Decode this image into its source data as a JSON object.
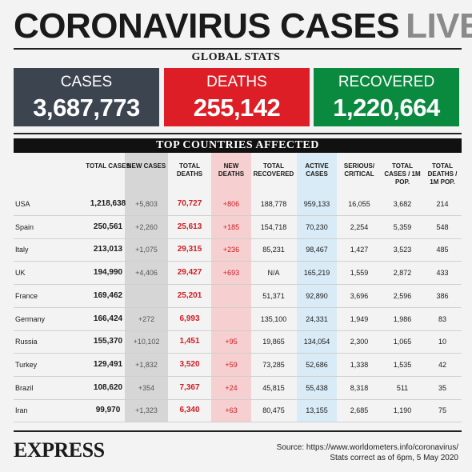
{
  "headline": {
    "main": "CORONAVIRUS CASES",
    "live": "LIVE"
  },
  "global": {
    "label": "GLOBAL STATS",
    "cases": {
      "label": "CASES",
      "value": "3,687,773",
      "color": "#3c4450"
    },
    "deaths": {
      "label": "DEATHS",
      "value": "255,142",
      "color": "#dd1e26"
    },
    "recovered": {
      "label": "RECOVERED",
      "value": "1,220,664",
      "color": "#0a8a3f"
    }
  },
  "table": {
    "title": "TOP COUNTRIES AFFECTED",
    "columns": [
      "TOTAL CASES",
      "NEW CASES",
      "TOTAL DEATHS",
      "NEW DEATHS",
      "TOTAL RECOVERED",
      "ACTIVE CASES",
      "SERIOUS/ CRITICAL",
      "TOTAL CASES / 1M POP.",
      "TOTAL DEATHS / 1M POP."
    ],
    "rows": [
      {
        "country": "USA",
        "total": "1,218,638",
        "new_cases": "+5,803",
        "deaths": "70,727",
        "new_deaths": "+806",
        "recovered": "188,778",
        "active": "959,133",
        "serious": "16,055",
        "cases_per_m": "3,682",
        "deaths_per_m": "214"
      },
      {
        "country": "Spain",
        "total": "250,561",
        "new_cases": "+2,260",
        "deaths": "25,613",
        "new_deaths": "+185",
        "recovered": "154,718",
        "active": "70,230",
        "serious": "2,254",
        "cases_per_m": "5,359",
        "deaths_per_m": "548"
      },
      {
        "country": "Italy",
        "total": "213,013",
        "new_cases": "+1,075",
        "deaths": "29,315",
        "new_deaths": "+236",
        "recovered": "85,231",
        "active": "98,467",
        "serious": "1,427",
        "cases_per_m": "3,523",
        "deaths_per_m": "485"
      },
      {
        "country": "UK",
        "total": "194,990",
        "new_cases": "+4,406",
        "deaths": "29,427",
        "new_deaths": "+693",
        "recovered": "N/A",
        "active": "165,219",
        "serious": "1,559",
        "cases_per_m": "2,872",
        "deaths_per_m": "433"
      },
      {
        "country": "France",
        "total": "169,462",
        "new_cases": "",
        "deaths": "25,201",
        "new_deaths": "",
        "recovered": "51,371",
        "active": "92,890",
        "serious": "3,696",
        "cases_per_m": "2,596",
        "deaths_per_m": "386"
      },
      {
        "country": "Germany",
        "total": "166,424",
        "new_cases": "+272",
        "deaths": "6,993",
        "new_deaths": "",
        "recovered": "135,100",
        "active": "24,331",
        "serious": "1,949",
        "cases_per_m": "1,986",
        "deaths_per_m": "83"
      },
      {
        "country": "Russia",
        "total": "155,370",
        "new_cases": "+10,102",
        "deaths": "1,451",
        "new_deaths": "+95",
        "recovered": "19,865",
        "active": "134,054",
        "serious": "2,300",
        "cases_per_m": "1,065",
        "deaths_per_m": "10"
      },
      {
        "country": "Turkey",
        "total": "129,491",
        "new_cases": "+1,832",
        "deaths": "3,520",
        "new_deaths": "+59",
        "recovered": "73,285",
        "active": "52,686",
        "serious": "1,338",
        "cases_per_m": "1,535",
        "deaths_per_m": "42"
      },
      {
        "country": "Brazil",
        "total": "108,620",
        "new_cases": "+354",
        "deaths": "7,367",
        "new_deaths": "+24",
        "recovered": "45,815",
        "active": "55,438",
        "serious": "8,318",
        "cases_per_m": "511",
        "deaths_per_m": "35"
      },
      {
        "country": "Iran",
        "total": "99,970",
        "new_cases": "+1,323",
        "deaths": "6,340",
        "new_deaths": "+63",
        "recovered": "80,475",
        "active": "13,155",
        "serious": "2,685",
        "cases_per_m": "1,190",
        "deaths_per_m": "75"
      }
    ]
  },
  "footer": {
    "logo": "EXPRESS",
    "source": "Source: https://www.worldometers.info/coronavirus/",
    "note": "Stats correct as of 6pm, 5 May 2020"
  }
}
